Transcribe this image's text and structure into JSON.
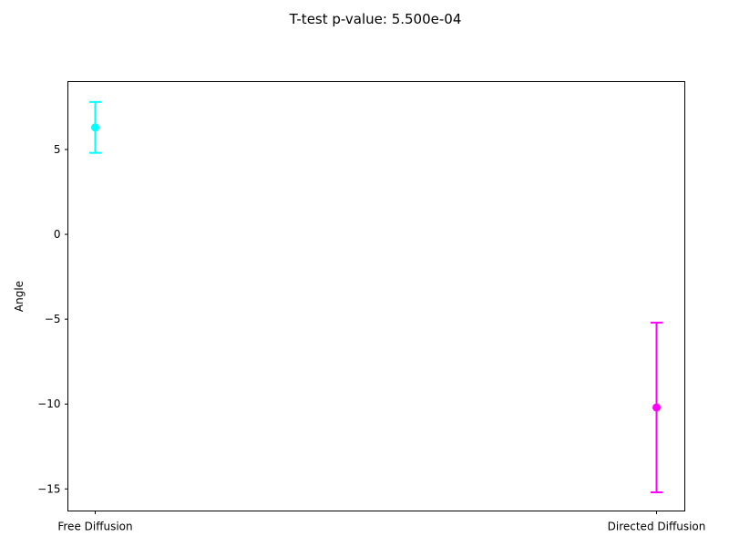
{
  "chart_data": {
    "type": "errorbar",
    "title": "T-test p-value: 5.500e-04",
    "xlabel": "",
    "ylabel": "Angle",
    "categories": [
      "Free Diffusion",
      "Directed Diffusion"
    ],
    "series": [
      {
        "category": "Free Diffusion",
        "mean": 6.3,
        "error": 1.5,
        "color": "#00ffff"
      },
      {
        "category": "Directed Diffusion",
        "mean": -10.2,
        "error": 5.0,
        "color": "#ff00ff"
      }
    ],
    "ylim": [
      -16.3,
      9.0
    ],
    "yticks": [
      5,
      0,
      -5,
      -10,
      -15
    ],
    "ytick_labels": [
      "5",
      "0",
      "−5",
      "−10",
      "−15"
    ],
    "grid": false,
    "legend": "none"
  }
}
